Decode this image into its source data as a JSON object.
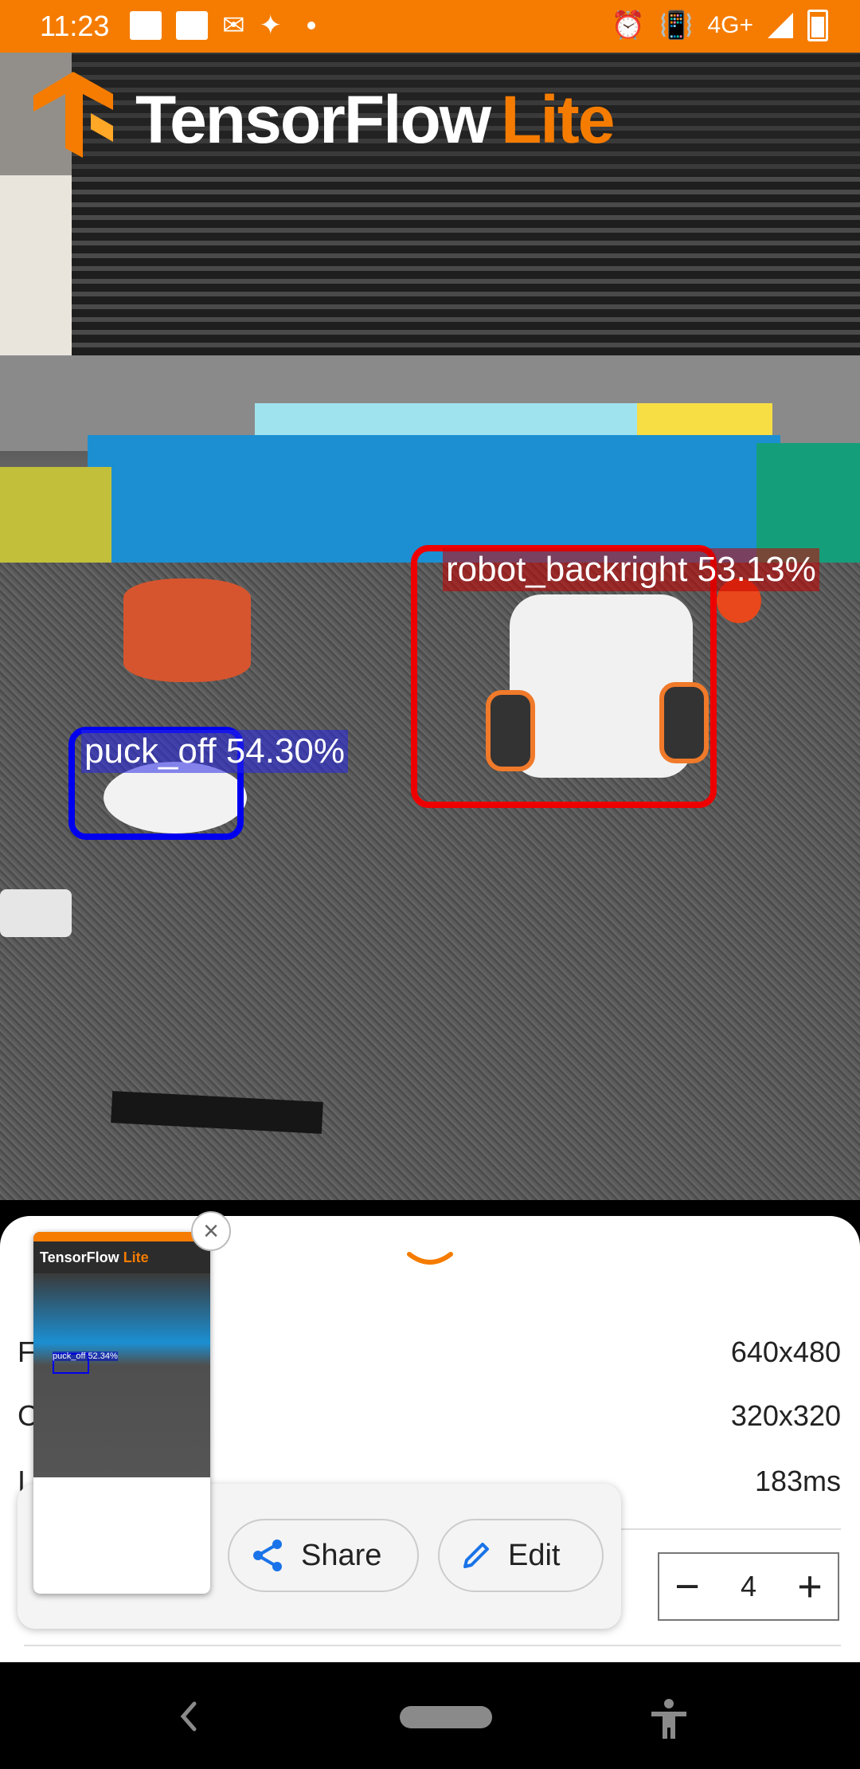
{
  "status_bar": {
    "time": "11:23",
    "network": "4G+",
    "icons": [
      "image-icon",
      "image-icon",
      "outlook-icon",
      "pinwheel-icon",
      "dot-icon",
      "alarm-icon",
      "vibrate-icon",
      "signal-icon",
      "battery-icon"
    ]
  },
  "header": {
    "logo_part1": "TensorFlow",
    "logo_part2": "Lite"
  },
  "detections": [
    {
      "label": "robot_backright 53.13%",
      "color": "#ee0000"
    },
    {
      "label": "puck_off 54.30%",
      "color": "#0000ee"
    }
  ],
  "bottom_sheet": {
    "rows": [
      {
        "label": "F",
        "value": "640x480"
      },
      {
        "label": "C",
        "value": "320x320"
      },
      {
        "label": "I",
        "value": "183ms"
      }
    ],
    "stepper": {
      "minus": "−",
      "value": "4",
      "plus": "+"
    }
  },
  "screenshot_preview": {
    "share_label": "Share",
    "edit_label": "Edit",
    "close_label": "×",
    "thumb_logo_1": "TensorFlow",
    "thumb_logo_2": "Lite",
    "thumb_label": "puck_off 52.34%"
  },
  "colors": {
    "accent": "#f57c00",
    "share_icon": "#1a73e8"
  }
}
